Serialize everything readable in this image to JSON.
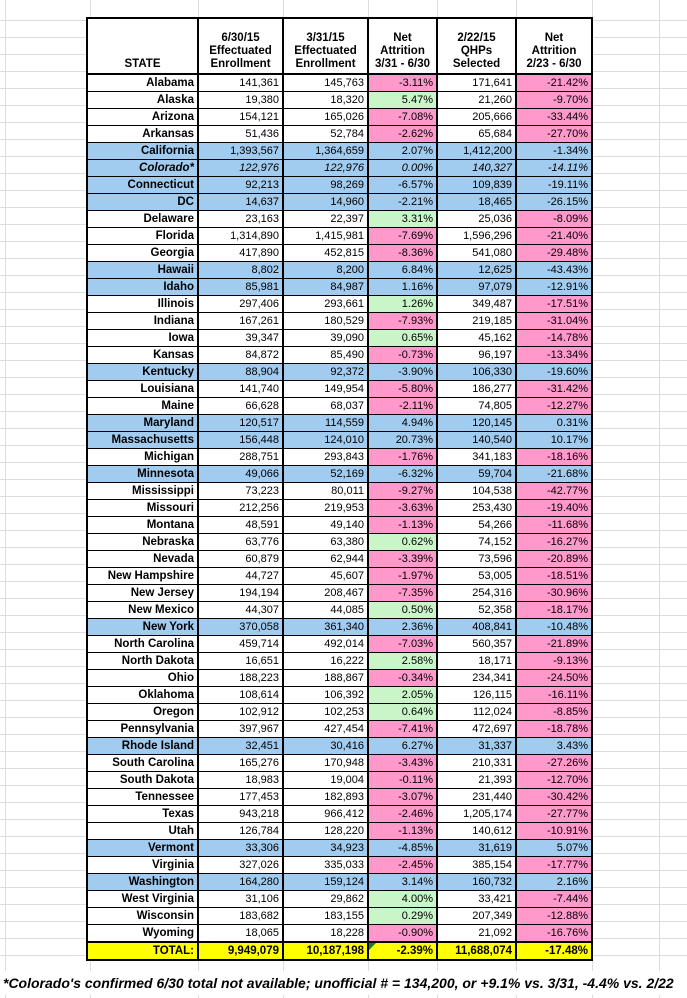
{
  "chart_data": {
    "type": "table",
    "columns": [
      "STATE",
      "6/30/15\nEffectuated\nEnrollment",
      "3/31/15\nEffectuated\nEnrollment",
      "Net\nAttrition\n3/31 - 6/30",
      "2/22/15\nQHPs\nSelected",
      "Net\nAttrition\n2/23 - 6/30"
    ],
    "row_fields": [
      "state",
      "effectuated_6_30_15",
      "effectuated_3_31_15",
      "net_attrition_3_31_to_6_30",
      "qhps_selected_2_22_15",
      "net_attrition_2_23_to_6_30",
      "blue_highlight",
      "italic"
    ],
    "rows": [
      [
        "Alabama",
        "141,361",
        "145,763",
        "-3.11%",
        "171,641",
        "-21.42%",
        0,
        0
      ],
      [
        "Alaska",
        "19,380",
        "18,320",
        "5.47%",
        "21,260",
        "-9.70%",
        0,
        0
      ],
      [
        "Arizona",
        "154,121",
        "165,026",
        "-7.08%",
        "205,666",
        "-33.44%",
        0,
        0
      ],
      [
        "Arkansas",
        "51,436",
        "52,784",
        "-2.62%",
        "65,684",
        "-27.70%",
        0,
        0
      ],
      [
        "California",
        "1,393,567",
        "1,364,659",
        "2.07%",
        "1,412,200",
        "-1.34%",
        1,
        0
      ],
      [
        "Colorado*",
        "122,976",
        "122,976",
        "0.00%",
        "140,327",
        "-14.11%",
        1,
        1
      ],
      [
        "Connecticut",
        "92,213",
        "98,269",
        "-6.57%",
        "109,839",
        "-19.11%",
        1,
        0
      ],
      [
        "DC",
        "14,637",
        "14,960",
        "-2.21%",
        "18,465",
        "-26.15%",
        1,
        0
      ],
      [
        "Delaware",
        "23,163",
        "22,397",
        "3.31%",
        "25,036",
        "-8.09%",
        0,
        0
      ],
      [
        "Florida",
        "1,314,890",
        "1,415,981",
        "-7.69%",
        "1,596,296",
        "-21.40%",
        0,
        0
      ],
      [
        "Georgia",
        "417,890",
        "452,815",
        "-8.36%",
        "541,080",
        "-29.48%",
        0,
        0
      ],
      [
        "Hawaii",
        "8,802",
        "8,200",
        "6.84%",
        "12,625",
        "-43.43%",
        1,
        0
      ],
      [
        "Idaho",
        "85,981",
        "84,987",
        "1.16%",
        "97,079",
        "-12.91%",
        1,
        0
      ],
      [
        "Illinois",
        "297,406",
        "293,661",
        "1.26%",
        "349,487",
        "-17.51%",
        0,
        0
      ],
      [
        "Indiana",
        "167,261",
        "180,529",
        "-7.93%",
        "219,185",
        "-31.04%",
        0,
        0
      ],
      [
        "Iowa",
        "39,347",
        "39,090",
        "0.65%",
        "45,162",
        "-14.78%",
        0,
        0
      ],
      [
        "Kansas",
        "84,872",
        "85,490",
        "-0.73%",
        "96,197",
        "-13.34%",
        0,
        0
      ],
      [
        "Kentucky",
        "88,904",
        "92,372",
        "-3.90%",
        "106,330",
        "-19.60%",
        1,
        0
      ],
      [
        "Louisiana",
        "141,740",
        "149,954",
        "-5.80%",
        "186,277",
        "-31.42%",
        0,
        0
      ],
      [
        "Maine",
        "66,628",
        "68,037",
        "-2.11%",
        "74,805",
        "-12.27%",
        0,
        0
      ],
      [
        "Maryland",
        "120,517",
        "114,559",
        "4.94%",
        "120,145",
        "0.31%",
        1,
        0
      ],
      [
        "Massachusetts",
        "156,448",
        "124,010",
        "20.73%",
        "140,540",
        "10.17%",
        1,
        0
      ],
      [
        "Michigan",
        "288,751",
        "293,843",
        "-1.76%",
        "341,183",
        "-18.16%",
        0,
        0
      ],
      [
        "Minnesota",
        "49,066",
        "52,169",
        "-6.32%",
        "59,704",
        "-21.68%",
        1,
        0
      ],
      [
        "Mississippi",
        "73,223",
        "80,011",
        "-9.27%",
        "104,538",
        "-42.77%",
        0,
        0
      ],
      [
        "Missouri",
        "212,256",
        "219,953",
        "-3.63%",
        "253,430",
        "-19.40%",
        0,
        0
      ],
      [
        "Montana",
        "48,591",
        "49,140",
        "-1.13%",
        "54,266",
        "-11.68%",
        0,
        0
      ],
      [
        "Nebraska",
        "63,776",
        "63,380",
        "0.62%",
        "74,152",
        "-16.27%",
        0,
        0
      ],
      [
        "Nevada",
        "60,879",
        "62,944",
        "-3.39%",
        "73,596",
        "-20.89%",
        0,
        0
      ],
      [
        "New Hampshire",
        "44,727",
        "45,607",
        "-1.97%",
        "53,005",
        "-18.51%",
        0,
        0
      ],
      [
        "New Jersey",
        "194,194",
        "208,467",
        "-7.35%",
        "254,316",
        "-30.96%",
        0,
        0
      ],
      [
        "New Mexico",
        "44,307",
        "44,085",
        "0.50%",
        "52,358",
        "-18.17%",
        0,
        0
      ],
      [
        "New York",
        "370,058",
        "361,340",
        "2.36%",
        "408,841",
        "-10.48%",
        1,
        0
      ],
      [
        "North Carolina",
        "459,714",
        "492,014",
        "-7.03%",
        "560,357",
        "-21.89%",
        0,
        0
      ],
      [
        "North Dakota",
        "16,651",
        "16,222",
        "2.58%",
        "18,171",
        "-9.13%",
        0,
        0
      ],
      [
        "Ohio",
        "188,223",
        "188,867",
        "-0.34%",
        "234,341",
        "-24.50%",
        0,
        0
      ],
      [
        "Oklahoma",
        "108,614",
        "106,392",
        "2.05%",
        "126,115",
        "-16.11%",
        0,
        0
      ],
      [
        "Oregon",
        "102,912",
        "102,253",
        "0.64%",
        "112,024",
        "-8.85%",
        0,
        0
      ],
      [
        "Pennsylvania",
        "397,967",
        "427,454",
        "-7.41%",
        "472,697",
        "-18.78%",
        0,
        0
      ],
      [
        "Rhode Island",
        "32,451",
        "30,416",
        "6.27%",
        "31,337",
        "3.43%",
        1,
        0
      ],
      [
        "South Carolina",
        "165,276",
        "170,948",
        "-3.43%",
        "210,331",
        "-27.26%",
        0,
        0
      ],
      [
        "South Dakota",
        "18,983",
        "19,004",
        "-0.11%",
        "21,393",
        "-12.70%",
        0,
        0
      ],
      [
        "Tennessee",
        "177,453",
        "182,893",
        "-3.07%",
        "231,440",
        "-30.42%",
        0,
        0
      ],
      [
        "Texas",
        "943,218",
        "966,412",
        "-2.46%",
        "1,205,174",
        "-27.77%",
        0,
        0
      ],
      [
        "Utah",
        "126,784",
        "128,220",
        "-1.13%",
        "140,612",
        "-10.91%",
        0,
        0
      ],
      [
        "Vermont",
        "33,306",
        "34,923",
        "-4.85%",
        "31,619",
        "5.07%",
        1,
        0
      ],
      [
        "Virginia",
        "327,026",
        "335,033",
        "-2.45%",
        "385,154",
        "-17.77%",
        0,
        0
      ],
      [
        "Washington",
        "164,280",
        "159,124",
        "3.14%",
        "160,732",
        "2.16%",
        1,
        0
      ],
      [
        "West Virginia",
        "31,106",
        "29,862",
        "4.00%",
        "33,421",
        "-7.44%",
        0,
        0
      ],
      [
        "Wisconsin",
        "183,682",
        "183,155",
        "0.29%",
        "207,349",
        "-12.88%",
        0,
        0
      ],
      [
        "Wyoming",
        "18,065",
        "18,228",
        "-0.90%",
        "21,092",
        "-16.76%",
        0,
        0
      ]
    ],
    "total": {
      "label": "TOTAL:",
      "values": [
        "9,949,079",
        "10,187,198",
        "-2.39%",
        "11,688,074",
        "-17.48%"
      ],
      "has_error_marker": true
    }
  },
  "footnote": "*Colorado's confirmed 6/30 total not available; unofficial # = 134,200, or +9.1% vs. 3/31, -4.4% vs. 2/22",
  "colors": {
    "state_exchange_blue": "#A1CBEF",
    "negative_pink": "#FF99CC",
    "positive_green": "#C9F5C9",
    "total_yellow": "#FFFF00",
    "border_black": "#000000",
    "gridline_gray": "#DCDCDC",
    "error_marker_green": "#1E7D1E"
  }
}
